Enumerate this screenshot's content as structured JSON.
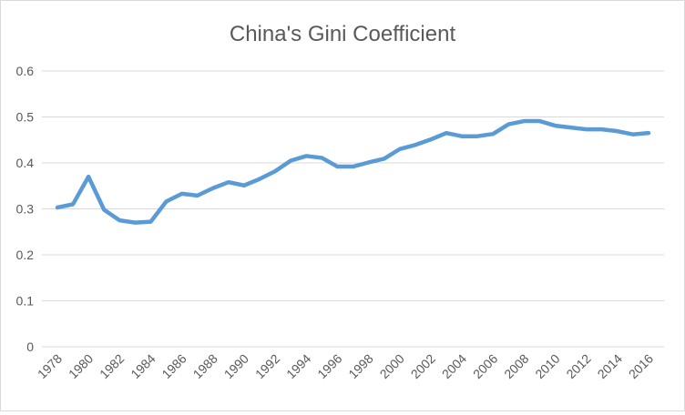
{
  "chart_data": {
    "type": "line",
    "title": "China's Gini Coefficient",
    "xlabel": "",
    "ylabel": "",
    "ylim": [
      0,
      0.6
    ],
    "yticks": [
      "0",
      "0.1",
      "0.2",
      "0.3",
      "0.4",
      "0.5",
      "0.6"
    ],
    "grid": true,
    "legend": "none",
    "line_color": "#5B9BD5",
    "x": [
      1978,
      1979,
      1980,
      1981,
      1982,
      1983,
      1984,
      1985,
      1986,
      1987,
      1988,
      1989,
      1990,
      1991,
      1992,
      1993,
      1994,
      1995,
      1996,
      1997,
      1998,
      1999,
      2000,
      2001,
      2002,
      2003,
      2004,
      2005,
      2006,
      2007,
      2008,
      2009,
      2010,
      2011,
      2012,
      2013,
      2014,
      2015,
      2016
    ],
    "xticks": [
      "1978",
      "1980",
      "1982",
      "1984",
      "1986",
      "1988",
      "1990",
      "1992",
      "1994",
      "1996",
      "1998",
      "2000",
      "2002",
      "2004",
      "2006",
      "2008",
      "2010",
      "2012",
      "2014",
      "2016"
    ],
    "series": [
      {
        "name": "Gini Coefficient",
        "values": [
          0.303,
          0.31,
          0.37,
          0.298,
          0.275,
          0.27,
          0.272,
          0.316,
          0.333,
          0.329,
          0.345,
          0.358,
          0.351,
          0.365,
          0.382,
          0.405,
          0.415,
          0.411,
          0.392,
          0.392,
          0.401,
          0.409,
          0.43,
          0.439,
          0.451,
          0.465,
          0.458,
          0.458,
          0.463,
          0.484,
          0.491,
          0.491,
          0.481,
          0.477,
          0.473,
          0.473,
          0.469,
          0.462,
          0.465
        ]
      }
    ]
  }
}
